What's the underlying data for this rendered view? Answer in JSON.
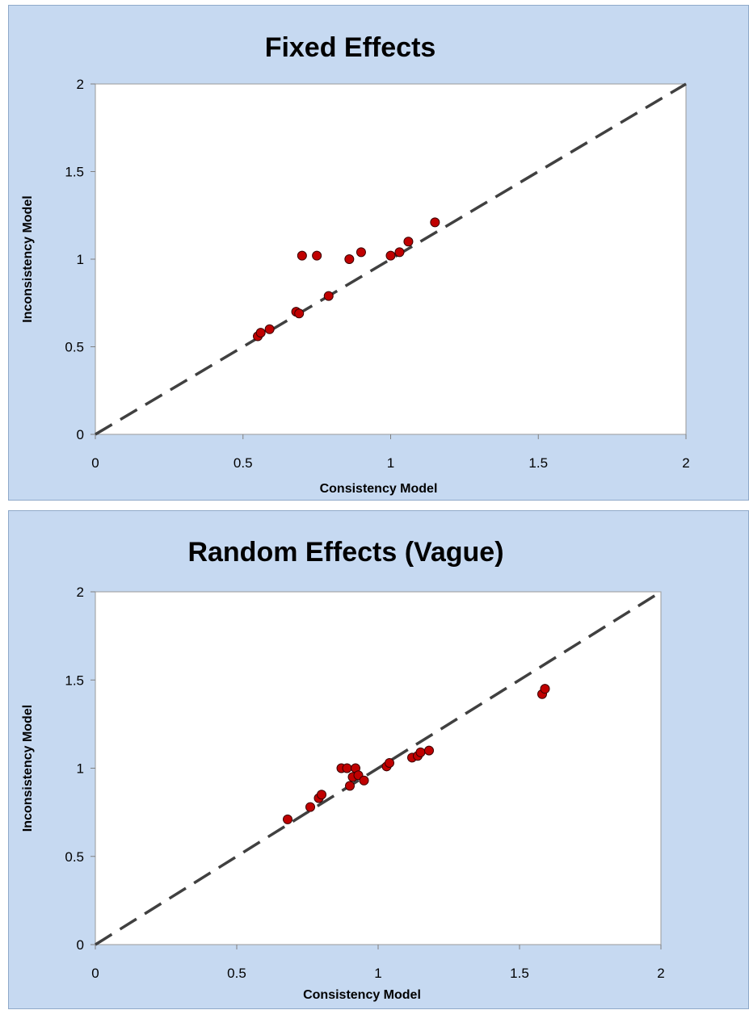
{
  "chart_data": [
    {
      "type": "scatter",
      "title": "Fixed Effects",
      "xlabel": "Consistency Model",
      "ylabel": "Inconsistency Model",
      "xlim": [
        0,
        2
      ],
      "ylim": [
        0,
        2
      ],
      "xticks": [
        "0",
        "0.5",
        "1",
        "1.5",
        "2"
      ],
      "yticks": [
        "0",
        "0.5",
        "1",
        "1.5",
        "2"
      ],
      "grid": false,
      "reference_line": "y = x (dashed)",
      "colors": {
        "marker": "#c00000",
        "marker_edge": "#3a0000",
        "line": "#404040",
        "plot_bg": "#ffffff",
        "panel_bg": "#c6d9f1"
      },
      "points": [
        {
          "x": 0.55,
          "y": 0.56
        },
        {
          "x": 0.56,
          "y": 0.58
        },
        {
          "x": 0.59,
          "y": 0.6
        },
        {
          "x": 0.68,
          "y": 0.7
        },
        {
          "x": 0.69,
          "y": 0.69
        },
        {
          "x": 0.7,
          "y": 1.02
        },
        {
          "x": 0.75,
          "y": 1.02
        },
        {
          "x": 0.79,
          "y": 0.79
        },
        {
          "x": 0.86,
          "y": 1.0
        },
        {
          "x": 0.9,
          "y": 1.04
        },
        {
          "x": 1.0,
          "y": 1.02
        },
        {
          "x": 1.03,
          "y": 1.04
        },
        {
          "x": 1.06,
          "y": 1.1
        },
        {
          "x": 1.15,
          "y": 1.21
        }
      ]
    },
    {
      "type": "scatter",
      "title": "Random Effects (Vague)",
      "xlabel": "Consistency Model",
      "ylabel": "Inconsistency Model",
      "xlim": [
        0,
        2
      ],
      "ylim": [
        0,
        2
      ],
      "xticks": [
        "0",
        "0.5",
        "1",
        "1.5",
        "2"
      ],
      "yticks": [
        "0",
        "0.5",
        "1",
        "1.5",
        "2"
      ],
      "grid": false,
      "reference_line": "y = x (dashed)",
      "colors": {
        "marker": "#c00000",
        "marker_edge": "#3a0000",
        "line": "#404040",
        "plot_bg": "#ffffff",
        "panel_bg": "#c6d9f1"
      },
      "points": [
        {
          "x": 0.68,
          "y": 0.71
        },
        {
          "x": 0.76,
          "y": 0.78
        },
        {
          "x": 0.79,
          "y": 0.83
        },
        {
          "x": 0.8,
          "y": 0.85
        },
        {
          "x": 0.87,
          "y": 1.0
        },
        {
          "x": 0.89,
          "y": 1.0
        },
        {
          "x": 0.9,
          "y": 0.9
        },
        {
          "x": 0.91,
          "y": 0.95
        },
        {
          "x": 0.92,
          "y": 1.0
        },
        {
          "x": 0.93,
          "y": 0.96
        },
        {
          "x": 0.95,
          "y": 0.93
        },
        {
          "x": 1.03,
          "y": 1.01
        },
        {
          "x": 1.04,
          "y": 1.03
        },
        {
          "x": 1.12,
          "y": 1.06
        },
        {
          "x": 1.14,
          "y": 1.07
        },
        {
          "x": 1.15,
          "y": 1.09
        },
        {
          "x": 1.18,
          "y": 1.1
        },
        {
          "x": 1.58,
          "y": 1.42
        },
        {
          "x": 1.59,
          "y": 1.45
        }
      ]
    }
  ]
}
